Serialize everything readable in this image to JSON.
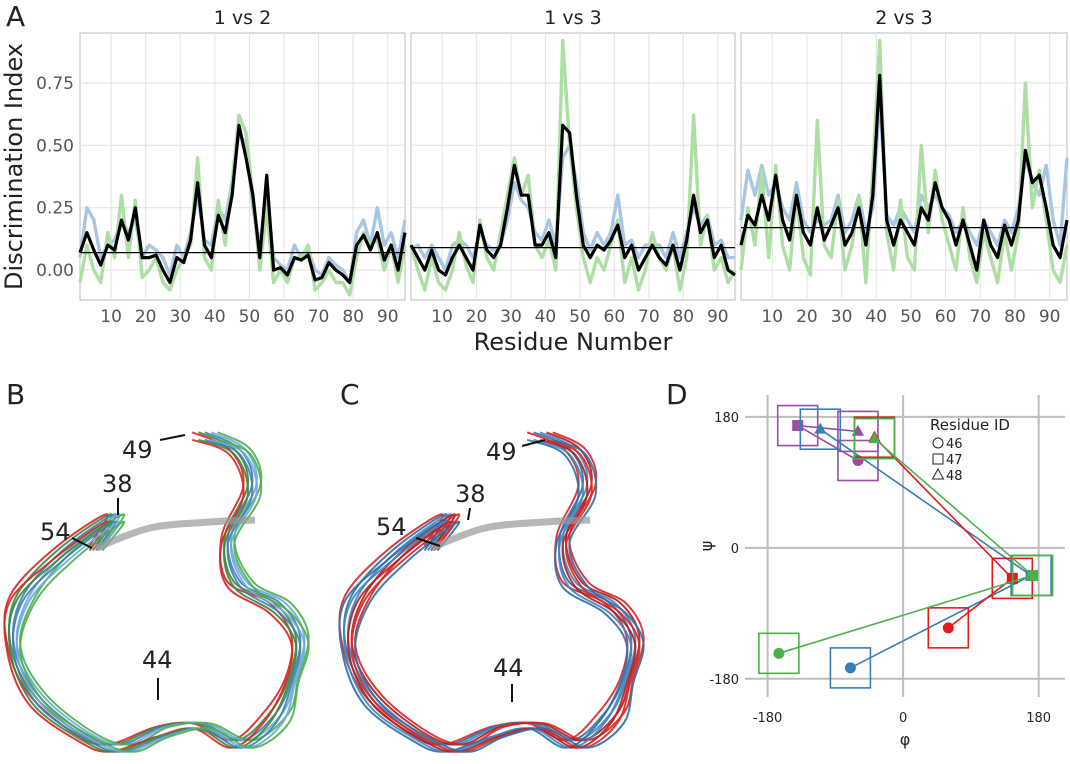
{
  "panel_labels": [
    "A",
    "B",
    "C",
    "D"
  ],
  "structures": [
    {
      "labels": [
        "49",
        "38",
        "54",
        "44"
      ]
    },
    {
      "labels": [
        "49",
        "38",
        "54",
        "44"
      ]
    }
  ],
  "chart_data": [
    {
      "type": "line",
      "title": "1 vs 2",
      "y_label": "Discrimination Index",
      "xlim": [
        1,
        95
      ],
      "xticks": [
        10,
        20,
        30,
        40,
        50,
        60,
        70,
        80,
        90
      ],
      "ylim": [
        -0.12,
        0.95
      ],
      "yticks": [
        {
          "value": 0,
          "label": "0.00"
        },
        0.25,
        {
          "value": 0.5,
          "label": "0.50"
        },
        0.75
      ],
      "grid": true,
      "reference_line": 0.07,
      "x": [
        1,
        3,
        5,
        7,
        9,
        11,
        13,
        15,
        17,
        19,
        21,
        23,
        25,
        27,
        29,
        31,
        33,
        35,
        37,
        39,
        41,
        43,
        45,
        47,
        49,
        51,
        53,
        55,
        57,
        59,
        61,
        63,
        65,
        67,
        69,
        71,
        73,
        75,
        77,
        79,
        81,
        83,
        85,
        87,
        89,
        91,
        93,
        95
      ],
      "series": [
        {
          "color": "#a9c6e2",
          "values": [
            0.05,
            0.25,
            0.2,
            0.05,
            0.1,
            0.12,
            0.2,
            0.15,
            0.2,
            0.05,
            0.1,
            0.08,
            0.05,
            -0.02,
            0.1,
            0.05,
            0.15,
            0.3,
            0.12,
            0.1,
            0.25,
            0.2,
            0.35,
            0.55,
            0.5,
            0.25,
            0.1,
            0.3,
            0.05,
            0.02,
            0.0,
            0.1,
            0.05,
            0.08,
            0.0,
            -0.02,
            0.05,
            0.02,
            0.0,
            -0.05,
            0.15,
            0.2,
            0.1,
            0.25,
            0.1,
            0.15,
            0.05,
            0.2
          ]
        },
        {
          "color": "#addfa5",
          "values": [
            -0.05,
            0.1,
            0.0,
            -0.05,
            0.15,
            0.05,
            0.3,
            0.05,
            0.28,
            -0.03,
            0.0,
            0.05,
            -0.05,
            -0.08,
            0.0,
            0.05,
            0.1,
            0.45,
            0.05,
            0.0,
            0.28,
            0.1,
            0.35,
            0.62,
            0.55,
            0.3,
            0.0,
            0.25,
            -0.05,
            0.0,
            -0.05,
            0.05,
            0.05,
            0.1,
            -0.08,
            -0.05,
            0.0,
            -0.05,
            -0.05,
            -0.1,
            0.05,
            0.15,
            0.1,
            0.12,
            0.0,
            0.1,
            -0.05,
            0.1
          ]
        },
        {
          "color": "#000000",
          "values": [
            0.07,
            0.15,
            0.08,
            0.02,
            0.1,
            0.08,
            0.2,
            0.12,
            0.25,
            0.05,
            0.05,
            0.06,
            0.0,
            -0.05,
            0.05,
            0.03,
            0.12,
            0.35,
            0.1,
            0.05,
            0.22,
            0.15,
            0.3,
            0.58,
            0.45,
            0.3,
            0.05,
            0.38,
            0.0,
            0.01,
            -0.02,
            0.05,
            0.04,
            0.06,
            -0.04,
            -0.03,
            0.03,
            0.0,
            -0.02,
            -0.05,
            0.1,
            0.14,
            0.08,
            0.15,
            0.04,
            0.1,
            0.0,
            0.15
          ]
        }
      ]
    },
    {
      "type": "line",
      "title": "1 vs 3",
      "x_label": "Residue Number",
      "xlim": [
        1,
        95
      ],
      "xticks": [
        10,
        20,
        30,
        40,
        50,
        60,
        70,
        80,
        90
      ],
      "ylim": [
        -0.12,
        0.95
      ],
      "yticks": [
        0,
        0.25,
        0.5,
        0.75
      ],
      "grid": true,
      "reference_line": 0.09,
      "x": [
        1,
        3,
        5,
        7,
        9,
        11,
        13,
        15,
        17,
        19,
        21,
        23,
        25,
        27,
        29,
        31,
        33,
        35,
        37,
        39,
        41,
        43,
        45,
        47,
        49,
        51,
        53,
        55,
        57,
        59,
        61,
        63,
        65,
        67,
        69,
        71,
        73,
        75,
        77,
        79,
        81,
        83,
        85,
        87,
        89,
        91,
        93,
        95
      ],
      "series": [
        {
          "color": "#a9c6e2",
          "values": [
            0.08,
            0.1,
            0.05,
            0.1,
            0.05,
            0.0,
            0.1,
            0.12,
            0.1,
            0.05,
            0.15,
            0.1,
            0.08,
            0.1,
            0.2,
            0.35,
            0.28,
            0.25,
            0.15,
            0.12,
            0.2,
            0.1,
            0.45,
            0.5,
            0.35,
            0.15,
            0.08,
            0.15,
            0.1,
            0.15,
            0.3,
            0.1,
            0.12,
            0.05,
            0.1,
            0.1,
            0.1,
            0.05,
            0.15,
            0.05,
            0.15,
            0.25,
            0.18,
            0.22,
            0.1,
            0.12,
            0.05,
            0.05
          ]
        },
        {
          "color": "#addfa5",
          "values": [
            0.1,
            0.0,
            -0.08,
            0.05,
            -0.05,
            -0.08,
            0.0,
            0.15,
            0.02,
            -0.05,
            0.2,
            0.05,
            0.0,
            0.15,
            0.3,
            0.45,
            0.3,
            0.38,
            0.1,
            0.05,
            0.12,
            0.0,
            0.92,
            0.5,
            0.25,
            0.05,
            -0.05,
            0.05,
            0.0,
            0.1,
            0.2,
            -0.05,
            0.05,
            -0.08,
            0.0,
            0.15,
            0.05,
            0.0,
            0.1,
            -0.08,
            0.05,
            0.62,
            0.1,
            0.22,
            0.0,
            0.05,
            -0.05,
            0.0
          ]
        },
        {
          "color": "#000000",
          "values": [
            0.1,
            0.05,
            0.0,
            0.08,
            0.0,
            -0.02,
            0.05,
            0.1,
            0.05,
            0.0,
            0.18,
            0.08,
            0.05,
            0.1,
            0.25,
            0.42,
            0.3,
            0.3,
            0.1,
            0.1,
            0.15,
            0.05,
            0.58,
            0.55,
            0.3,
            0.1,
            0.05,
            0.1,
            0.08,
            0.12,
            0.18,
            0.05,
            0.1,
            0.0,
            0.05,
            0.1,
            0.05,
            0.02,
            0.1,
            0.0,
            0.12,
            0.3,
            0.15,
            0.2,
            0.05,
            0.1,
            0.0,
            -0.02
          ]
        }
      ]
    },
    {
      "type": "line",
      "title": "2 vs 3",
      "xlim": [
        1,
        95
      ],
      "xticks": [
        10,
        20,
        30,
        40,
        50,
        60,
        70,
        80,
        90
      ],
      "ylim": [
        -0.12,
        0.95
      ],
      "yticks": [
        0,
        0.25,
        0.5,
        0.75
      ],
      "grid": true,
      "reference_line": 0.17,
      "x": [
        1,
        3,
        5,
        7,
        9,
        11,
        13,
        15,
        17,
        19,
        21,
        23,
        25,
        27,
        29,
        31,
        33,
        35,
        37,
        39,
        41,
        43,
        45,
        47,
        49,
        51,
        53,
        55,
        57,
        59,
        61,
        63,
        65,
        67,
        69,
        71,
        73,
        75,
        77,
        79,
        81,
        83,
        85,
        87,
        89,
        91,
        93,
        95
      ],
      "series": [
        {
          "color": "#a9c6e2",
          "values": [
            0.2,
            0.4,
            0.3,
            0.42,
            0.3,
            0.35,
            0.25,
            0.2,
            0.35,
            0.2,
            0.15,
            0.2,
            0.18,
            0.2,
            0.3,
            0.15,
            0.2,
            0.3,
            0.15,
            0.25,
            0.7,
            0.22,
            0.18,
            0.25,
            0.2,
            0.15,
            0.3,
            0.25,
            0.3,
            0.25,
            0.22,
            0.15,
            0.2,
            0.15,
            0.1,
            0.2,
            0.15,
            0.1,
            0.2,
            0.15,
            0.25,
            0.45,
            0.35,
            0.3,
            0.42,
            0.2,
            0.1,
            0.45
          ]
        },
        {
          "color": "#addfa5",
          "values": [
            0.0,
            0.25,
            0.1,
            0.4,
            0.05,
            0.42,
            0.1,
            0.0,
            0.3,
            0.05,
            -0.02,
            0.6,
            0.1,
            0.05,
            0.28,
            0.0,
            0.1,
            0.3,
            -0.05,
            0.4,
            0.92,
            0.15,
            0.0,
            0.28,
            0.05,
            0.0,
            0.5,
            0.15,
            0.4,
            0.2,
            0.1,
            0.0,
            0.25,
            0.05,
            -0.05,
            0.15,
            0.05,
            -0.05,
            0.15,
            0.0,
            0.15,
            0.75,
            0.25,
            0.4,
            0.2,
            0.0,
            -0.05,
            0.1
          ]
        },
        {
          "color": "#000000",
          "values": [
            0.1,
            0.22,
            0.18,
            0.3,
            0.2,
            0.38,
            0.2,
            0.12,
            0.3,
            0.15,
            0.1,
            0.25,
            0.12,
            0.18,
            0.25,
            0.1,
            0.15,
            0.25,
            0.1,
            0.3,
            0.78,
            0.2,
            0.1,
            0.2,
            0.15,
            0.1,
            0.25,
            0.2,
            0.35,
            0.25,
            0.2,
            0.1,
            0.2,
            0.1,
            0.0,
            0.2,
            0.1,
            0.05,
            0.18,
            0.1,
            0.2,
            0.48,
            0.35,
            0.38,
            0.25,
            0.1,
            0.05,
            0.2
          ]
        }
      ]
    },
    {
      "type": "scatter",
      "x_label": "φ",
      "y_label": "ψ",
      "xlim": [
        -210,
        215
      ],
      "xticks": [
        -180,
        0,
        180
      ],
      "ylim": [
        -205,
        210
      ],
      "yticks": [
        -180,
        0,
        180
      ],
      "grid": true,
      "legend_title": "Residue ID",
      "legend_labels": [
        "46",
        "47",
        "48"
      ],
      "markers": [
        "circle",
        "square",
        "triangle"
      ],
      "legend": "top-right",
      "series": [
        {
          "color": "#984ea3",
          "x": [
            -60,
            -140,
            -60
          ],
          "y": [
            120,
            168,
            160
          ]
        },
        {
          "color": "#377eb8",
          "x": [
            -70,
            170,
            -110
          ],
          "y": [
            -165,
            -38,
            163
          ]
        },
        {
          "color": "#e41a1c",
          "x": [
            60,
            145,
            -38
          ],
          "y": [
            -110,
            -42,
            152
          ]
        },
        {
          "color": "#4daf4a",
          "x": [
            -165,
            172,
            -38
          ],
          "y": [
            -145,
            -38,
            150
          ]
        }
      ]
    }
  ]
}
